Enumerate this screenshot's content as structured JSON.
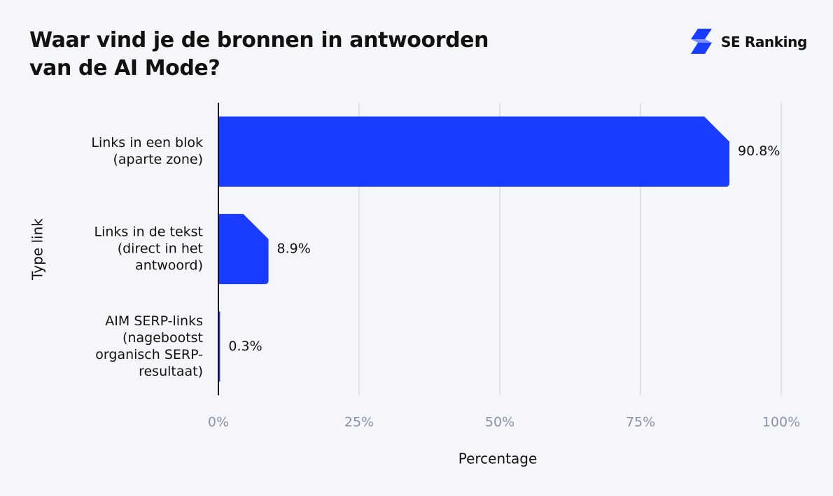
{
  "header": {
    "title_line1": "Waar vind je de bronnen in antwoorden",
    "title_line2": "van de AI Mode?"
  },
  "brand": {
    "name": "SE Ranking",
    "icon": "lightning-bolt-icon",
    "color": "#1a3cff"
  },
  "chart_data": {
    "type": "bar",
    "orientation": "horizontal",
    "title": "Waar vind je de bronnen in antwoorden van de AI Mode?",
    "xlabel": "Percentage",
    "ylabel": "Type link",
    "xlim": [
      0,
      100
    ],
    "x_ticks": [
      0,
      25,
      50,
      75,
      100
    ],
    "x_tick_labels": [
      "0%",
      "25%",
      "50%",
      "75%",
      "100%"
    ],
    "grid": true,
    "categories": [
      [
        "Links in een blok",
        "(aparte zone)"
      ],
      [
        "Links in de tekst",
        "(direct in het",
        "antwoord)"
      ],
      [
        "AIM SERP-links",
        "(nagebootst",
        "organisch SERP-",
        "resultaat)"
      ]
    ],
    "values": [
      90.8,
      8.9,
      0.3
    ],
    "value_labels": [
      "90.8%",
      "8.9%",
      "0.3%"
    ],
    "bar_color": "#1a3cff"
  }
}
